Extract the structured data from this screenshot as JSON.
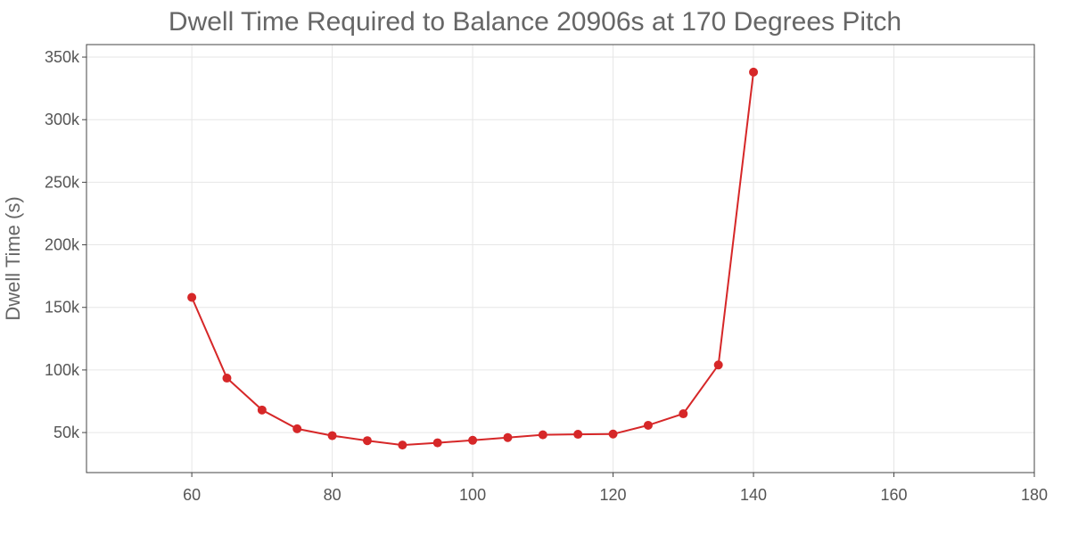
{
  "chart_data": {
    "type": "line",
    "title": "Dwell Time Required to Balance 20906s at 170 Degrees Pitch",
    "xlabel": "",
    "ylabel": "Dwell Time (s)",
    "xlim": [
      45,
      180
    ],
    "ylim": [
      18000,
      360000
    ],
    "x_ticks": [
      60,
      80,
      100,
      120,
      140,
      160,
      180
    ],
    "x_tick_labels": [
      "60",
      "80",
      "100",
      "120",
      "140",
      "160",
      "180"
    ],
    "y_ticks": [
      50000,
      100000,
      150000,
      200000,
      250000,
      300000,
      350000
    ],
    "y_tick_labels": [
      "50k",
      "100k",
      "150k",
      "200k",
      "250k",
      "300k",
      "350k"
    ],
    "grid": true,
    "series": [
      {
        "color": "#d62728",
        "x": [
          60,
          65,
          70,
          75,
          80,
          85,
          90,
          95,
          100,
          105,
          110,
          115,
          120,
          125,
          130,
          135,
          140
        ],
        "y": [
          158000,
          93500,
          68000,
          53000,
          47500,
          43500,
          40000,
          41800,
          43800,
          46000,
          48200,
          48600,
          48800,
          55800,
          65000,
          104000,
          338000
        ]
      }
    ]
  }
}
